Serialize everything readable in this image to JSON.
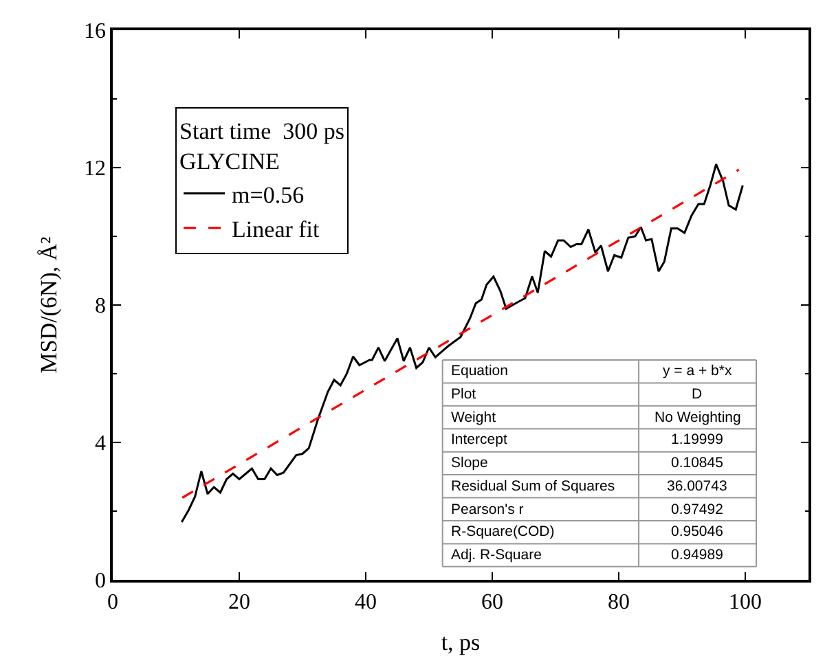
{
  "chart_data": {
    "type": "line",
    "xlabel": "t, ps",
    "ylabel": "MSD/(6N), Å²",
    "legend_title": "Start time  300 ps\nGLYCINE",
    "xlim": [
      0,
      110
    ],
    "xticks": [
      0,
      20,
      40,
      60,
      80,
      100
    ],
    "ylim": [
      0,
      16
    ],
    "yticks": [
      0,
      4,
      8,
      12,
      16
    ],
    "grid": false,
    "legend": "top left",
    "series": [
      {
        "name": "m=0.56",
        "color": "#000000",
        "line_style": "solid",
        "x": [
          10.9,
          12,
          13,
          14,
          15,
          16,
          17,
          18,
          19,
          20,
          22,
          23,
          24,
          25,
          26,
          27,
          29,
          30,
          31,
          32.4,
          34,
          35,
          36,
          37,
          38,
          39,
          40.6,
          41,
          42,
          43,
          45,
          46,
          47,
          48,
          49,
          50,
          51,
          53,
          55,
          56.5,
          57.4,
          58.3,
          59.1,
          60.2,
          61.3,
          62.2,
          63.7,
          65.2,
          66.3,
          67.2,
          68.3,
          69.3,
          70.4,
          71.3,
          72.4,
          73.3,
          74.1,
          75.2,
          76.3,
          77.2,
          78.3,
          79.3,
          80.4,
          81.5,
          82.6,
          83.5,
          84.3,
          85.2,
          86.3,
          87.2,
          88.3,
          89.3,
          90.4,
          91.5,
          92.6,
          93.5,
          94.5,
          95.4,
          96.5,
          97.4,
          98.5,
          99.6
        ],
        "values": [
          1.68,
          2.03,
          2.42,
          3.16,
          2.5,
          2.7,
          2.54,
          2.93,
          3.09,
          2.93,
          3.24,
          2.93,
          2.93,
          3.24,
          3.05,
          3.12,
          3.63,
          3.67,
          3.83,
          4.65,
          5.47,
          5.82,
          5.66,
          6.0,
          6.5,
          6.25,
          6.4,
          6.4,
          6.76,
          6.37,
          7.03,
          6.37,
          6.76,
          6.17,
          6.33,
          6.76,
          6.48,
          6.8,
          7.07,
          7.62,
          8.05,
          8.16,
          8.59,
          8.83,
          8.4,
          7.89,
          8.05,
          8.2,
          8.83,
          8.36,
          9.57,
          9.41,
          9.88,
          9.88,
          9.69,
          9.77,
          9.77,
          10.2,
          9.53,
          9.73,
          8.98,
          9.45,
          9.38,
          9.96,
          10.0,
          10.27,
          9.88,
          9.92,
          8.98,
          9.26,
          10.23,
          10.23,
          10.1,
          10.6,
          10.94,
          10.94,
          11.5,
          12.1,
          11.6,
          10.9,
          10.78,
          11.48
        ]
      },
      {
        "name": "Linear fit",
        "color": "#ff0000",
        "line_style": "dashed",
        "x": [
          11,
          99
        ],
        "values": [
          2.39,
          11.94
        ]
      }
    ],
    "annotations": [
      "Equation\ty = a + b*x",
      "Plot\tD",
      "Weight\tNo Weighting",
      "Intercept\t1.19999",
      "Slope\t0.10845",
      "Residual Sum of Squares\t36.00743",
      "Pearson's r\t0.97492",
      "R-Square(COD)\t0.95046",
      "Adj. R-Square\t0.94989"
    ]
  }
}
